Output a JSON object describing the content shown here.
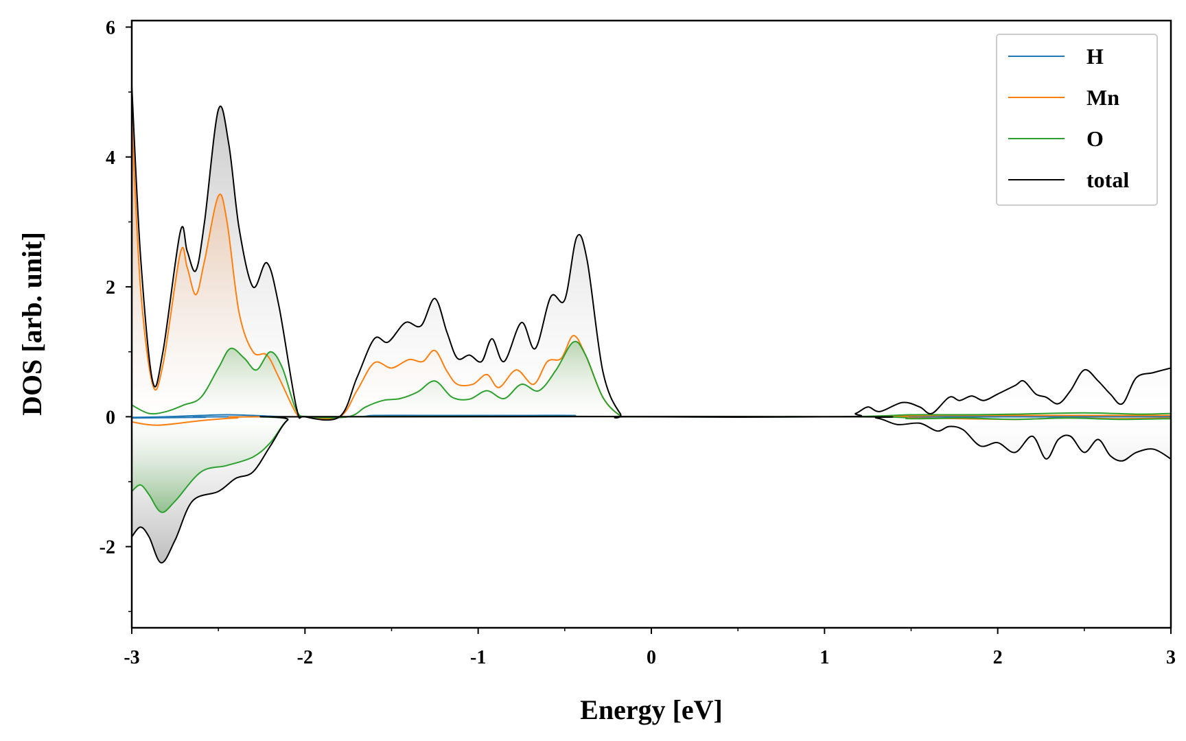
{
  "chart_data": {
    "type": "line",
    "title": "",
    "xlabel": "Energy [eV]",
    "ylabel": "DOS [arb. unit]",
    "xlim": [
      -3,
      3
    ],
    "ylim": [
      -3.25,
      6.1
    ],
    "xticks": [
      -3,
      -2,
      -1,
      0,
      1,
      2,
      3
    ],
    "xtick_labels": [
      "-3",
      "-2",
      "-1",
      "0",
      "1",
      "2",
      "3"
    ],
    "yticks": [
      -2,
      0,
      2,
      4,
      6
    ],
    "ytick_labels": [
      "-2",
      "0",
      "2",
      "4",
      "6"
    ],
    "grid": false,
    "legend_position": "top-right",
    "series": [
      {
        "name": "H",
        "color": "#1f77b4",
        "up": [
          [
            -3,
            -0.01
          ],
          [
            -2.8,
            0.0
          ],
          [
            -2.6,
            0.02
          ],
          [
            -2.45,
            0.03
          ],
          [
            -2.3,
            0.02
          ],
          [
            -2.1,
            0.0
          ],
          [
            -1.7,
            0.0
          ],
          [
            -1.6,
            0.02
          ],
          [
            -1.3,
            0.02
          ],
          [
            -1.0,
            0.02
          ],
          [
            -0.7,
            0.02
          ],
          [
            -0.45,
            0.02
          ],
          [
            -0.2,
            0.0
          ],
          [
            3,
            0.0
          ]
        ],
        "down": [
          [
            -3,
            -0.02
          ],
          [
            -2.6,
            -0.01
          ],
          [
            -2.1,
            0.0
          ],
          [
            3,
            0.0
          ]
        ]
      },
      {
        "name": "Mn",
        "color": "#ff7f0e",
        "up": [
          [
            -3,
            4.6
          ],
          [
            -2.95,
            2.0
          ],
          [
            -2.88,
            0.5
          ],
          [
            -2.82,
            0.8
          ],
          [
            -2.72,
            2.52
          ],
          [
            -2.68,
            2.3
          ],
          [
            -2.63,
            1.88
          ],
          [
            -2.58,
            2.4
          ],
          [
            -2.5,
            3.4
          ],
          [
            -2.45,
            3.0
          ],
          [
            -2.38,
            1.6
          ],
          [
            -2.3,
            1.0
          ],
          [
            -2.22,
            0.95
          ],
          [
            -2.15,
            0.6
          ],
          [
            -2.05,
            0.05
          ],
          [
            -2.0,
            0.0
          ],
          [
            -1.8,
            0.0
          ],
          [
            -1.7,
            0.4
          ],
          [
            -1.6,
            0.83
          ],
          [
            -1.5,
            0.75
          ],
          [
            -1.4,
            0.88
          ],
          [
            -1.32,
            0.85
          ],
          [
            -1.25,
            1.02
          ],
          [
            -1.18,
            0.7
          ],
          [
            -1.12,
            0.5
          ],
          [
            -1.03,
            0.5
          ],
          [
            -0.95,
            0.65
          ],
          [
            -0.88,
            0.45
          ],
          [
            -0.78,
            0.72
          ],
          [
            -0.68,
            0.5
          ],
          [
            -0.6,
            0.85
          ],
          [
            -0.52,
            0.9
          ],
          [
            -0.45,
            1.25
          ],
          [
            -0.38,
            0.95
          ],
          [
            -0.28,
            0.3
          ],
          [
            -0.18,
            0.02
          ],
          [
            -0.1,
            0.0
          ],
          [
            1.1,
            0.0
          ],
          [
            1.4,
            0.01
          ],
          [
            1.7,
            0.02
          ],
          [
            2.0,
            0.02
          ],
          [
            2.3,
            0.02
          ],
          [
            2.6,
            0.02
          ],
          [
            3.0,
            0.02
          ]
        ],
        "down": [
          [
            -3,
            -0.08
          ],
          [
            -2.85,
            -0.13
          ],
          [
            -2.6,
            -0.06
          ],
          [
            -2.4,
            -0.02
          ],
          [
            -2.1,
            0.0
          ],
          [
            1.1,
            0.0
          ],
          [
            1.5,
            -0.02
          ],
          [
            1.8,
            -0.03
          ],
          [
            2.1,
            -0.04
          ],
          [
            2.4,
            -0.02
          ],
          [
            2.7,
            -0.03
          ],
          [
            3.0,
            -0.02
          ]
        ]
      },
      {
        "name": "O",
        "color": "#2ca02c",
        "up": [
          [
            -3,
            0.18
          ],
          [
            -2.9,
            0.05
          ],
          [
            -2.8,
            0.08
          ],
          [
            -2.7,
            0.18
          ],
          [
            -2.6,
            0.3
          ],
          [
            -2.5,
            0.75
          ],
          [
            -2.43,
            1.05
          ],
          [
            -2.35,
            0.9
          ],
          [
            -2.28,
            0.72
          ],
          [
            -2.2,
            1.0
          ],
          [
            -2.13,
            0.75
          ],
          [
            -2.05,
            0.1
          ],
          [
            -1.98,
            0.0
          ],
          [
            -1.75,
            0.0
          ],
          [
            -1.65,
            0.15
          ],
          [
            -1.55,
            0.25
          ],
          [
            -1.45,
            0.28
          ],
          [
            -1.35,
            0.38
          ],
          [
            -1.25,
            0.55
          ],
          [
            -1.15,
            0.3
          ],
          [
            -1.05,
            0.27
          ],
          [
            -0.95,
            0.4
          ],
          [
            -0.85,
            0.28
          ],
          [
            -0.75,
            0.5
          ],
          [
            -0.65,
            0.4
          ],
          [
            -0.55,
            0.72
          ],
          [
            -0.45,
            1.15
          ],
          [
            -0.38,
            0.95
          ],
          [
            -0.28,
            0.3
          ],
          [
            -0.18,
            0.02
          ],
          [
            -0.1,
            0.0
          ],
          [
            1.1,
            0.0
          ],
          [
            1.5,
            0.03
          ],
          [
            1.8,
            0.03
          ],
          [
            2.1,
            0.04
          ],
          [
            2.5,
            0.06
          ],
          [
            2.8,
            0.04
          ],
          [
            3.0,
            0.05
          ]
        ],
        "down": [
          [
            -3,
            -1.15
          ],
          [
            -2.95,
            -1.05
          ],
          [
            -2.9,
            -1.2
          ],
          [
            -2.83,
            -1.47
          ],
          [
            -2.75,
            -1.3
          ],
          [
            -2.6,
            -0.85
          ],
          [
            -2.45,
            -0.75
          ],
          [
            -2.3,
            -0.62
          ],
          [
            -2.2,
            -0.4
          ],
          [
            -2.1,
            -0.05
          ],
          [
            -2.0,
            0.0
          ],
          [
            1.1,
            0.0
          ],
          [
            1.5,
            -0.03
          ],
          [
            1.8,
            -0.02
          ],
          [
            2.1,
            -0.04
          ],
          [
            2.4,
            -0.02
          ],
          [
            2.7,
            -0.04
          ],
          [
            3.0,
            -0.03
          ]
        ]
      },
      {
        "name": "total",
        "color": "#000000",
        "up": [
          [
            -3,
            5.1
          ],
          [
            -2.95,
            2.5
          ],
          [
            -2.88,
            0.55
          ],
          [
            -2.82,
            1.0
          ],
          [
            -2.72,
            2.85
          ],
          [
            -2.68,
            2.55
          ],
          [
            -2.63,
            2.25
          ],
          [
            -2.58,
            3.0
          ],
          [
            -2.5,
            4.73
          ],
          [
            -2.44,
            4.2
          ],
          [
            -2.38,
            2.9
          ],
          [
            -2.3,
            2.0
          ],
          [
            -2.22,
            2.37
          ],
          [
            -2.15,
            1.7
          ],
          [
            -2.05,
            0.15
          ],
          [
            -2.0,
            0.0
          ],
          [
            -1.8,
            0.0
          ],
          [
            -1.7,
            0.6
          ],
          [
            -1.6,
            1.2
          ],
          [
            -1.52,
            1.15
          ],
          [
            -1.42,
            1.45
          ],
          [
            -1.33,
            1.4
          ],
          [
            -1.25,
            1.82
          ],
          [
            -1.18,
            1.3
          ],
          [
            -1.12,
            0.9
          ],
          [
            -1.05,
            0.95
          ],
          [
            -0.98,
            0.85
          ],
          [
            -0.92,
            1.2
          ],
          [
            -0.85,
            0.85
          ],
          [
            -0.75,
            1.45
          ],
          [
            -0.67,
            1.05
          ],
          [
            -0.58,
            1.85
          ],
          [
            -0.5,
            1.8
          ],
          [
            -0.43,
            2.77
          ],
          [
            -0.37,
            2.4
          ],
          [
            -0.28,
            0.7
          ],
          [
            -0.18,
            0.05
          ],
          [
            -0.1,
            0.0
          ],
          [
            1.1,
            0.0
          ],
          [
            1.18,
            0.05
          ],
          [
            1.25,
            0.15
          ],
          [
            1.32,
            0.08
          ],
          [
            1.45,
            0.22
          ],
          [
            1.55,
            0.15
          ],
          [
            1.62,
            0.05
          ],
          [
            1.72,
            0.3
          ],
          [
            1.78,
            0.25
          ],
          [
            1.85,
            0.32
          ],
          [
            1.92,
            0.25
          ],
          [
            2.0,
            0.35
          ],
          [
            2.1,
            0.48
          ],
          [
            2.15,
            0.55
          ],
          [
            2.22,
            0.35
          ],
          [
            2.28,
            0.3
          ],
          [
            2.35,
            0.2
          ],
          [
            2.42,
            0.4
          ],
          [
            2.5,
            0.72
          ],
          [
            2.58,
            0.55
          ],
          [
            2.65,
            0.35
          ],
          [
            2.72,
            0.2
          ],
          [
            2.8,
            0.6
          ],
          [
            2.9,
            0.68
          ],
          [
            3.0,
            0.75
          ]
        ],
        "down": [
          [
            -3,
            -1.85
          ],
          [
            -2.95,
            -1.7
          ],
          [
            -2.9,
            -1.85
          ],
          [
            -2.83,
            -2.25
          ],
          [
            -2.75,
            -1.9
          ],
          [
            -2.65,
            -1.3
          ],
          [
            -2.5,
            -1.15
          ],
          [
            -2.4,
            -0.95
          ],
          [
            -2.3,
            -0.85
          ],
          [
            -2.2,
            -0.45
          ],
          [
            -2.1,
            -0.05
          ],
          [
            -2.0,
            0.0
          ],
          [
            1.1,
            0.0
          ],
          [
            1.3,
            -0.02
          ],
          [
            1.42,
            -0.12
          ],
          [
            1.55,
            -0.1
          ],
          [
            1.65,
            -0.22
          ],
          [
            1.72,
            -0.15
          ],
          [
            1.8,
            -0.2
          ],
          [
            1.9,
            -0.45
          ],
          [
            2.0,
            -0.4
          ],
          [
            2.1,
            -0.55
          ],
          [
            2.2,
            -0.3
          ],
          [
            2.28,
            -0.65
          ],
          [
            2.35,
            -0.35
          ],
          [
            2.42,
            -0.3
          ],
          [
            2.5,
            -0.55
          ],
          [
            2.58,
            -0.35
          ],
          [
            2.65,
            -0.6
          ],
          [
            2.72,
            -0.68
          ],
          [
            2.8,
            -0.55
          ],
          [
            2.9,
            -0.5
          ],
          [
            3.0,
            -0.65
          ]
        ]
      }
    ]
  }
}
